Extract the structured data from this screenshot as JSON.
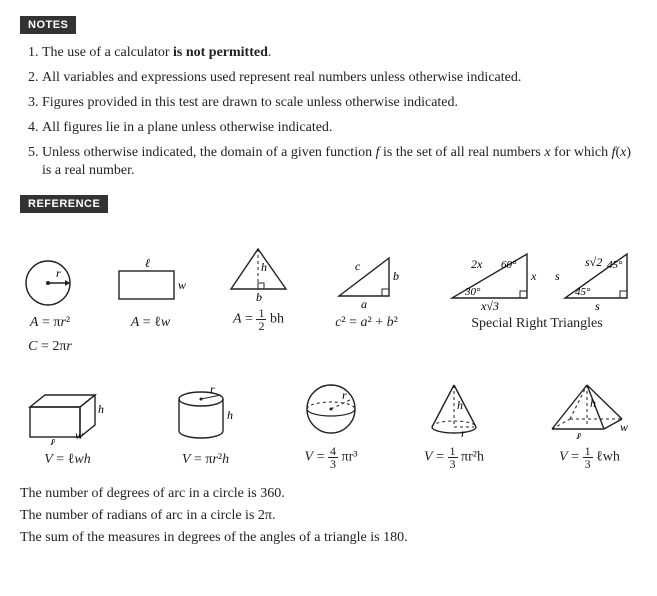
{
  "notes": {
    "label": "NOTES",
    "items": [
      {
        "pre": "The use of a calculator ",
        "bold": "is not permitted",
        "post": "."
      },
      {
        "text": "All variables and expressions used represent real numbers unless otherwise indicated."
      },
      {
        "text": "Figures provided in this test are drawn to scale unless otherwise indicated."
      },
      {
        "text": "All figures lie in a plane unless otherwise indicated."
      },
      {
        "text": "Unless otherwise indicated, the domain of a given function f is the set of all real numbers x for which f(x) is a real number."
      }
    ]
  },
  "reference": {
    "label": "REFERENCE",
    "row1": {
      "circle": {
        "r_label": "r",
        "formula_area": "A = πr²",
        "formula_circ": "C = 2πr"
      },
      "rect": {
        "l_label": "ℓ",
        "w_label": "w",
        "formula": "A = ℓw"
      },
      "triangle": {
        "b_label": "b",
        "h_label": "h",
        "formula_html": "A = <span class='frac'><span class='top'>1</span><span class='bot'>2</span></span> bh"
      },
      "right_tri": {
        "a_label": "a",
        "b_label": "b",
        "c_label": "c",
        "formula": "c² = a² + b²"
      },
      "srt": {
        "t306090": {
          "hyp": "2x",
          "short": "x",
          "long": "x√3",
          "a60": "60°",
          "a30": "30°"
        },
        "t454590": {
          "leg": "s",
          "hyp": "s√2",
          "a45a": "45°",
          "a45b": "45°"
        },
        "label": "Special Right Triangles"
      }
    },
    "row2": {
      "box": {
        "l": "ℓ",
        "w": "w",
        "h": "h",
        "formula": "V = ℓwh"
      },
      "cylinder": {
        "r": "r",
        "h": "h",
        "formula": "V = πr²h"
      },
      "sphere": {
        "r": "r",
        "formula_html": "V = <span class='frac'><span class='top'>4</span><span class='bot'>3</span></span> πr³"
      },
      "cone": {
        "r": "r",
        "h": "h",
        "formula_html": "V = <span class='frac'><span class='top'>1</span><span class='bot'>3</span></span> πr²h"
      },
      "pyramid": {
        "l": "ℓ",
        "w": "w",
        "h": "h",
        "formula_html": "V = <span class='frac'><span class='top'>1</span><span class='bot'>3</span></span> ℓwh"
      }
    },
    "facts": [
      "The number of degrees of arc in a circle is 360.",
      "The number of radians of arc in a circle is 2π.",
      "The sum of the measures in degrees of the angles of a triangle is 180."
    ]
  },
  "style": {
    "stroke": "#222",
    "stroke_width": 1.4,
    "dash": "3,3",
    "label_fontsize": 12
  }
}
